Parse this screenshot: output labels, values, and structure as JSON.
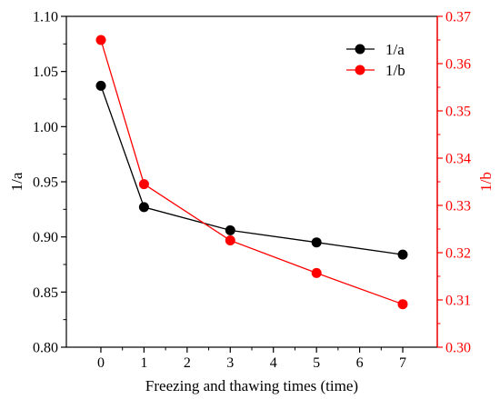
{
  "chart_data": {
    "type": "line",
    "title": "",
    "xlabel": "Freezing and thawing times (time)",
    "ylabel_left": "1/a",
    "ylabel_right": "1/b",
    "xlim": [
      -0.8,
      7.8
    ],
    "xticks": [
      0,
      1,
      2,
      3,
      4,
      5,
      6,
      7
    ],
    "ylim_left": [
      0.8,
      1.1
    ],
    "yticks_left": [
      "0.80",
      "0.85",
      "0.90",
      "0.95",
      "1.00",
      "1.05",
      "1.10"
    ],
    "ylim_right": [
      0.3,
      0.37
    ],
    "yticks_right": [
      "0.30",
      "0.31",
      "0.32",
      "0.33",
      "0.34",
      "0.35",
      "0.36",
      "0.37"
    ],
    "legend_position": "top-right",
    "grid": false,
    "series": [
      {
        "name": "1/a",
        "axis": "left",
        "color": "#000000",
        "x": [
          0,
          1,
          3,
          5,
          7
        ],
        "y": [
          1.037,
          0.927,
          0.906,
          0.895,
          0.884
        ]
      },
      {
        "name": "1/b",
        "axis": "right",
        "color": "#ff0000",
        "x": [
          0,
          1,
          3,
          5,
          7
        ],
        "y": [
          0.365,
          0.3345,
          0.3226,
          0.3157,
          0.3091
        ]
      }
    ]
  }
}
